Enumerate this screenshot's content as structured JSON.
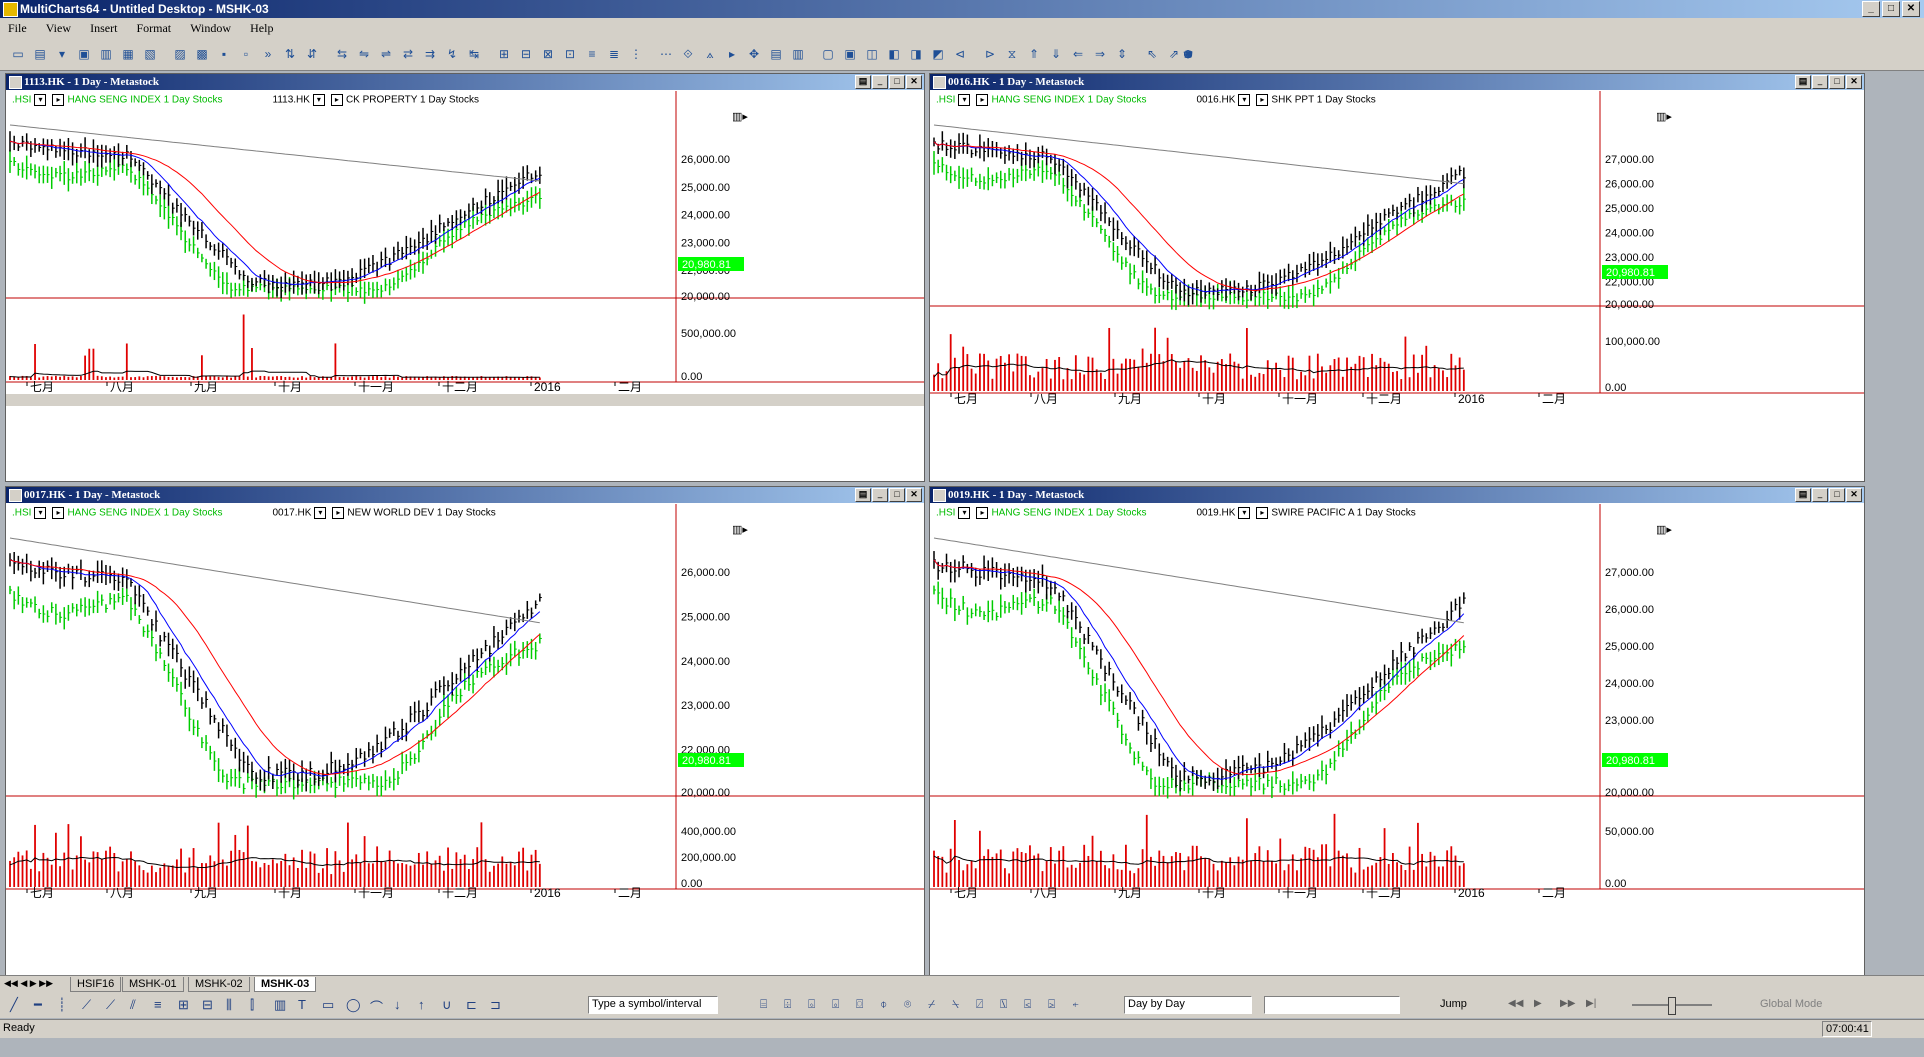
{
  "window": {
    "title": "MultiCharts64 - Untitled Desktop - MSHK-03"
  },
  "menu": [
    "File",
    "View",
    "Insert",
    "Format",
    "Window",
    "Help"
  ],
  "price_tag": "20,980.81",
  "panes": [
    {
      "id": "p1",
      "title": "1113.HK - 1 Day - Metastock",
      "index_sym": ".HSI",
      "index_name": "HANG SENG INDEX  1 Day  Stocks",
      "stock_sym": "1113.HK",
      "stock_name": "CK PROPERTY  1 Day  Stocks",
      "price_labels": [
        "26,000.00",
        "25,000.00",
        "24,000.00",
        "23,000.00",
        "22,000.00",
        "20,000.00"
      ],
      "volume_labels": [
        "500,000.00",
        "0.00"
      ],
      "months": [
        "七月",
        "八月",
        "九月",
        "十月",
        "十一月",
        "十二月",
        "2016",
        "二月"
      ]
    },
    {
      "id": "p2",
      "title": "0016.HK - 1 Day - Metastock",
      "index_sym": ".HSI",
      "index_name": "HANG SENG INDEX  1 Day  Stocks",
      "stock_sym": "0016.HK",
      "stock_name": "SHK PPT  1 Day  Stocks",
      "price_labels": [
        "27,000.00",
        "26,000.00",
        "25,000.00",
        "24,000.00",
        "23,000.00",
        "22,000.00",
        "20,000.00"
      ],
      "volume_labels": [
        "100,000.00",
        "0.00"
      ],
      "months": [
        "七月",
        "八月",
        "九月",
        "十月",
        "十一月",
        "十二月",
        "2016",
        "二月"
      ]
    },
    {
      "id": "p3",
      "title": "0017.HK - 1 Day - Metastock",
      "index_sym": ".HSI",
      "index_name": "HANG SENG INDEX  1 Day  Stocks",
      "stock_sym": "0017.HK",
      "stock_name": "NEW WORLD DEV  1 Day  Stocks",
      "price_labels": [
        "26,000.00",
        "25,000.00",
        "24,000.00",
        "23,000.00",
        "22,000.00",
        "20,000.00"
      ],
      "volume_labels": [
        "400,000.00",
        "200,000.00",
        "0.00"
      ],
      "months": [
        "七月",
        "八月",
        "九月",
        "十月",
        "十一月",
        "十二月",
        "2016",
        "二月"
      ]
    },
    {
      "id": "p4",
      "title": "0019.HK - 1 Day - Metastock",
      "index_sym": ".HSI",
      "index_name": "HANG SENG INDEX  1 Day  Stocks",
      "stock_sym": "0019.HK",
      "stock_name": "SWIRE PACIFIC A  1 Day  Stocks",
      "price_labels": [
        "27,000.00",
        "26,000.00",
        "25,000.00",
        "24,000.00",
        "23,000.00",
        "22,000.00",
        "20,000.00"
      ],
      "volume_labels": [
        "50,000.00",
        "0.00"
      ],
      "months": [
        "七月",
        "八月",
        "九月",
        "十月",
        "十一月",
        "十二月",
        "2016",
        "二月"
      ]
    }
  ],
  "tabs": [
    "HSIF16",
    "MSHK-01",
    "MSHK-02",
    "MSHK-03"
  ],
  "active_tab": "MSHK-03",
  "drawbar": {
    "symbol_placeholder": "Type a symbol/interval",
    "mode_select": "Day by Day",
    "jump_label": "Jump",
    "global_mode": "Global Mode"
  },
  "status": {
    "text": "Ready",
    "time": "07:00:41"
  },
  "colors": {
    "index_bars": "#00cc00",
    "stock_bars": "#000000",
    "ma_fast": "#0000ff",
    "ma_mid": "#ff0000",
    "ma_slow": "#808080",
    "volume": "#e00000",
    "price_tag": "#00ff00"
  }
}
